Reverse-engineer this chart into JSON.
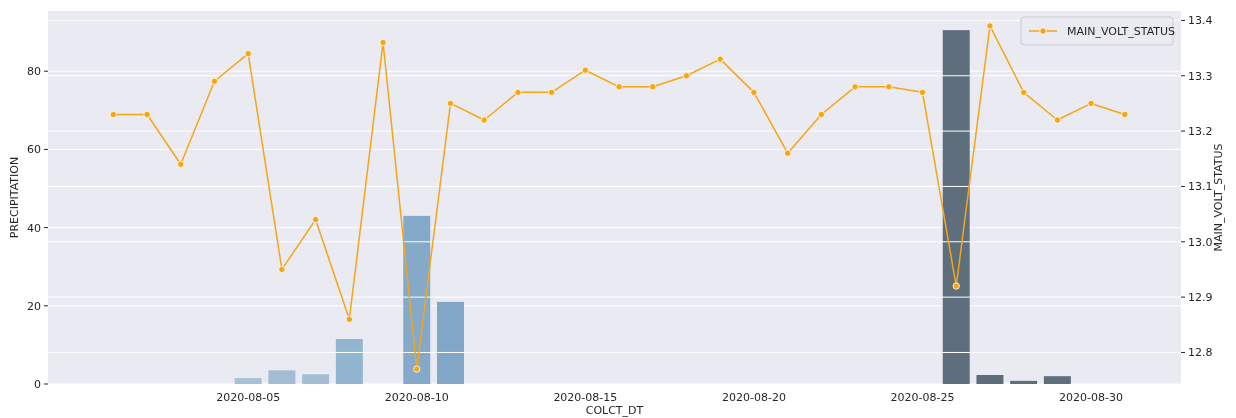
{
  "chart_data": {
    "type": "bar",
    "xlabel": "COLCT_DT",
    "ylabel": "PRECIPITATION",
    "y2label": "MAIN_VOLT_STATUS",
    "xlim": [
      "2020-07-30T01:30",
      "2020-09-01T16:00"
    ],
    "xticks": [
      {
        "value": "2020-08-05",
        "label": "2020-08-05"
      },
      {
        "value": "2020-08-10",
        "label": "2020-08-10"
      },
      {
        "value": "2020-08-15",
        "label": "2020-08-15"
      },
      {
        "value": "2020-08-20",
        "label": "2020-08-20"
      },
      {
        "value": "2020-08-25",
        "label": "2020-08-25"
      },
      {
        "value": "2020-08-30",
        "label": "2020-08-30"
      }
    ],
    "ylim": [
      0,
      95.4
    ],
    "yticks": [
      0,
      20,
      40,
      60,
      80
    ],
    "y2lim": [
      12.743,
      13.417
    ],
    "y2ticks": [
      12.8,
      12.9,
      {
        "value": 13.0,
        "label": "13.0"
      },
      13.1,
      13.2,
      13.3,
      13.4
    ],
    "grid": "y",
    "legend": "top right",
    "marker": "circle",
    "series": [
      {
        "x": [
          "2020-08-05",
          "2020-08-06",
          "2020-08-07",
          "2020-08-08",
          "2020-08-10",
          "2020-08-11",
          "2020-08-26",
          "2020-08-27",
          "2020-08-28",
          "2020-08-29"
        ],
        "values": [
          1.5,
          3.5,
          2.5,
          11.5,
          43,
          21,
          90.5,
          2.3,
          0.8,
          2
        ],
        "colors": [
          "#a7c1d6",
          "#a2bdd4",
          "#a4bfd5",
          "#92b5d0",
          "#84a9c9",
          "#81a6c6",
          "#5f6e7c",
          "#5d6c7a",
          "#5f6e7c",
          "#5f6e7c"
        ]
      },
      {
        "type": "line",
        "name": "MAIN_VOLT_STATUS",
        "axis": "y2",
        "color": "#f5a614",
        "x": [
          "2020-08-01",
          "2020-08-02",
          "2020-08-03",
          "2020-08-04",
          "2020-08-05",
          "2020-08-06",
          "2020-08-07",
          "2020-08-08",
          "2020-08-09",
          "2020-08-10",
          "2020-08-11",
          "2020-08-12",
          "2020-08-13",
          "2020-08-14",
          "2020-08-15",
          "2020-08-16",
          "2020-08-17",
          "2020-08-18",
          "2020-08-19",
          "2020-08-20",
          "2020-08-21",
          "2020-08-22",
          "2020-08-23",
          "2020-08-24",
          "2020-08-25",
          "2020-08-26",
          "2020-08-27",
          "2020-08-28",
          "2020-08-29",
          "2020-08-30",
          "2020-08-31"
        ],
        "values": [
          13.23,
          13.23,
          13.14,
          13.29,
          13.34,
          12.95,
          13.04,
          12.86,
          13.36,
          12.77,
          13.25,
          13.22,
          13.27,
          13.27,
          13.31,
          13.28,
          13.28,
          13.3,
          13.33,
          13.27,
          13.16,
          13.23,
          13.28,
          13.28,
          13.27,
          12.92,
          13.39,
          13.27,
          13.22,
          13.25,
          13.23
        ]
      }
    ]
  }
}
